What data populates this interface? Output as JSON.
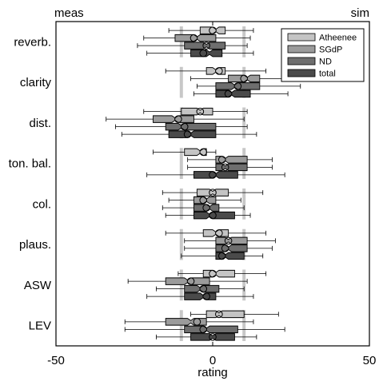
{
  "chart_data": {
    "type": "boxplot",
    "title": "",
    "xlabel": "rating",
    "ylabel": "",
    "xlim": [
      -50,
      50
    ],
    "x_ticks": [
      -50,
      0,
      50
    ],
    "x_tick_labels": [
      "-50",
      "0",
      "50"
    ],
    "x_end_labels": {
      "left": "meas",
      "right": "sim"
    },
    "grid": false,
    "legend_position": "top-right",
    "reference_lines": [
      -10,
      10
    ],
    "categories": [
      "reverb.",
      "clarity",
      "dist.",
      "ton. bal.",
      "col.",
      "plaus.",
      "ASW",
      "LEV"
    ],
    "series": [
      {
        "name": "Atheenee",
        "color": "#c4c4c4"
      },
      {
        "name": "SGdP",
        "color": "#9b9b9b"
      },
      {
        "name": "ND",
        "color": "#6e6e6e"
      },
      {
        "name": "total",
        "color": "#4a4a4a"
      }
    ],
    "boxes": [
      [
        {
          "whisker_low": -14,
          "q1": -4,
          "median": 1,
          "q3": 4,
          "whisker_high": 13,
          "mean": 0
        },
        {
          "whisker_low": -22,
          "q1": -12,
          "median": -5,
          "q3": 1,
          "whisker_high": 12,
          "mean": -6
        },
        {
          "whisker_low": -24,
          "q1": -9,
          "median": -2,
          "q3": 4,
          "whisker_high": 11,
          "mean": -2
        },
        {
          "whisker_low": -21,
          "q1": -7,
          "median": -1,
          "q3": 3,
          "whisker_high": 13,
          "mean": -3
        }
      ],
      [
        {
          "whisker_low": -15,
          "q1": -2,
          "median": 1,
          "q3": 4,
          "whisker_high": 17,
          "mean": 2
        },
        {
          "whisker_low": -7,
          "q1": 5,
          "median": 11,
          "q3": 15,
          "whisker_high": 26,
          "mean": 10
        },
        {
          "whisker_low": -5,
          "q1": 1,
          "median": 7,
          "q3": 15,
          "whisker_high": 28,
          "mean": 8
        },
        {
          "whisker_low": -6,
          "q1": 1,
          "median": 6,
          "q3": 12,
          "whisker_high": 24,
          "mean": 5
        }
      ],
      [
        {
          "whisker_low": -22,
          "q1": -10,
          "median": -4,
          "q3": 0,
          "whisker_high": 11,
          "mean": -4
        },
        {
          "whisker_low": -34,
          "q1": -19,
          "median": -12,
          "q3": -6,
          "whisker_high": 10,
          "mean": -11
        },
        {
          "whisker_low": -31,
          "q1": -15,
          "median": -10,
          "q3": 1,
          "whisker_high": 11,
          "mean": -9
        },
        {
          "whisker_low": -29,
          "q1": -14,
          "median": -7,
          "q3": 1,
          "whisker_high": 14,
          "mean": -8
        }
      ],
      [
        {
          "whisker_low": -19,
          "q1": -9,
          "median": -4,
          "q3": -2,
          "whisker_high": 1,
          "mean": -3
        },
        {
          "whisker_low": -8,
          "q1": 1,
          "median": 4,
          "q3": 11,
          "whisker_high": 19,
          "mean": 3
        },
        {
          "whisker_low": -8,
          "q1": 1,
          "median": 4,
          "q3": 11,
          "whisker_high": 19,
          "mean": 4
        },
        {
          "whisker_low": -21,
          "q1": -6,
          "median": 1,
          "q3": 8,
          "whisker_high": 23,
          "mean": 0
        }
      ],
      [
        {
          "whisker_low": -16,
          "q1": -5,
          "median": 0,
          "q3": 5,
          "whisker_high": 16,
          "mean": 0
        },
        {
          "whisker_low": -14,
          "q1": -6,
          "median": -2,
          "q3": 1,
          "whisker_high": 9,
          "mean": -3
        },
        {
          "whisker_low": -16,
          "q1": -6,
          "median": -1,
          "q3": 2,
          "whisker_high": 10,
          "mean": -2
        },
        {
          "whisker_low": -15,
          "q1": -6,
          "median": -1,
          "q3": 7,
          "whisker_high": 12,
          "mean": 0
        }
      ],
      [
        {
          "whisker_low": -15,
          "q1": -3,
          "median": 1,
          "q3": 5,
          "whisker_high": 17,
          "mean": 2
        },
        {
          "whisker_low": -9,
          "q1": 1,
          "median": 5,
          "q3": 11,
          "whisker_high": 20,
          "mean": 5
        },
        {
          "whisker_low": -9,
          "q1": 1,
          "median": 5,
          "q3": 11,
          "whisker_high": 19,
          "mean": 4
        },
        {
          "whisker_low": -10,
          "q1": 1,
          "median": 4,
          "q3": 10,
          "whisker_high": 16,
          "mean": 3
        }
      ],
      [
        {
          "whisker_low": -11,
          "q1": -3,
          "median": 1,
          "q3": 7,
          "whisker_high": 17,
          "mean": 0
        },
        {
          "whisker_low": -27,
          "q1": -15,
          "median": -8,
          "q3": -1,
          "whisker_high": 11,
          "mean": -7
        },
        {
          "whisker_low": -18,
          "q1": -9,
          "median": -4,
          "q3": 2,
          "whisker_high": 10,
          "mean": -3
        },
        {
          "whisker_low": -21,
          "q1": -9,
          "median": -3,
          "q3": 1,
          "whisker_high": 13,
          "mean": -2
        }
      ],
      [
        {
          "whisker_low": -7,
          "q1": -2,
          "median": 2,
          "q3": 10,
          "whisker_high": 21,
          "mean": 2
        },
        {
          "whisker_low": -28,
          "q1": -15,
          "median": -7,
          "q3": -2,
          "whisker_high": 13,
          "mean": -5
        },
        {
          "whisker_low": -28,
          "q1": -9,
          "median": -2,
          "q3": 8,
          "whisker_high": 23,
          "mean": -3
        },
        {
          "whisker_low": -18,
          "q1": -7,
          "median": 0,
          "q3": 7,
          "whisker_high": 14,
          "mean": 0
        }
      ]
    ]
  }
}
